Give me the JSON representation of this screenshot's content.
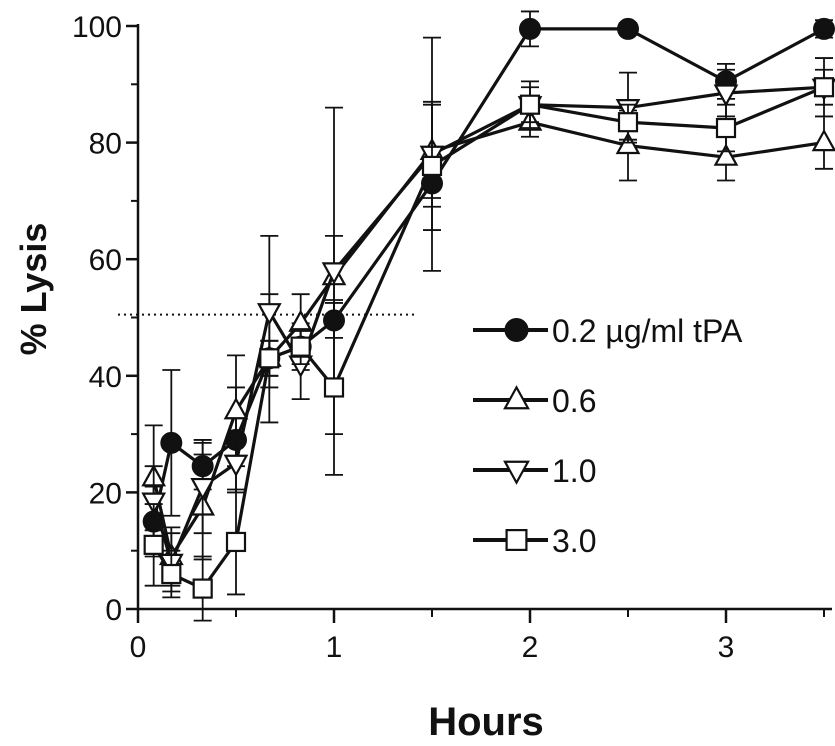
{
  "chart_data": {
    "type": "line",
    "xlabel": "Hours",
    "ylabel": "% Lysis",
    "xlim": [
      0,
      3.55
    ],
    "ylim": [
      0,
      100
    ],
    "x_ticks": [
      0,
      1,
      2,
      3
    ],
    "y_ticks": [
      0,
      20,
      40,
      60,
      80,
      100
    ],
    "grid": false,
    "legend_position": "right-center",
    "reference_line": {
      "y": 50.5,
      "x_range": [
        0,
        1.42
      ],
      "style": "dotted"
    },
    "series": [
      {
        "name": "0.2 µg/ml tPA",
        "marker": "filled-circle",
        "points": [
          {
            "x": 0.08,
            "y": 15,
            "err": 6
          },
          {
            "x": 0.17,
            "y": 28.5,
            "err": 12.5
          },
          {
            "x": 0.33,
            "y": 24.5,
            "err": 4
          },
          {
            "x": 0.5,
            "y": 29,
            "err": 9
          },
          {
            "x": 0.67,
            "y": 43,
            "err": 3
          },
          {
            "x": 0.83,
            "y": 45,
            "err": 4
          },
          {
            "x": 1.0,
            "y": 49.5,
            "err": 3
          },
          {
            "x": 1.5,
            "y": 73,
            "err": 4
          },
          {
            "x": 2.0,
            "y": 99.5,
            "err": 3
          },
          {
            "x": 2.5,
            "y": 99.5,
            "err": 1
          },
          {
            "x": 3.0,
            "y": 90.5,
            "err": 3
          },
          {
            "x": 3.5,
            "y": 99.5,
            "err": 1.5
          }
        ]
      },
      {
        "name": "0.6",
        "marker": "open-triangle-up",
        "points": [
          {
            "x": 0.08,
            "y": 22.5,
            "err": 9
          },
          {
            "x": 0.17,
            "y": 9,
            "err": 5
          },
          {
            "x": 0.33,
            "y": 17.5,
            "err": 9
          },
          {
            "x": 0.5,
            "y": 34,
            "err": 9.5
          },
          {
            "x": 0.67,
            "y": 43,
            "err": 11
          },
          {
            "x": 0.83,
            "y": 49,
            "err": 5
          },
          {
            "x": 1.0,
            "y": 57,
            "err": 7
          },
          {
            "x": 1.5,
            "y": 78.5,
            "err": 8
          },
          {
            "x": 2.0,
            "y": 83.5,
            "err": 2.5
          },
          {
            "x": 2.5,
            "y": 79.5,
            "err": 6
          },
          {
            "x": 3.0,
            "y": 77.5,
            "err": 4
          },
          {
            "x": 3.5,
            "y": 80,
            "err": 4.5
          }
        ]
      },
      {
        "name": "1.0",
        "marker": "open-triangle-down",
        "points": [
          {
            "x": 0.08,
            "y": 18.5,
            "err": 6
          },
          {
            "x": 0.17,
            "y": 8,
            "err": 5
          },
          {
            "x": 0.33,
            "y": 21,
            "err": 8
          },
          {
            "x": 0.5,
            "y": 25,
            "err": 5
          },
          {
            "x": 0.67,
            "y": 51,
            "err": 13
          },
          {
            "x": 0.83,
            "y": 42,
            "err": 6
          },
          {
            "x": 1.0,
            "y": 58,
            "err": 28
          },
          {
            "x": 1.5,
            "y": 78,
            "err": 20
          },
          {
            "x": 2.0,
            "y": 86.5,
            "err": 4
          },
          {
            "x": 2.5,
            "y": 86,
            "err": 6
          },
          {
            "x": 3.0,
            "y": 88.5,
            "err": 4
          },
          {
            "x": 3.5,
            "y": 89.5,
            "err": 5
          }
        ]
      },
      {
        "name": "3.0",
        "marker": "open-square",
        "points": [
          {
            "x": 0.08,
            "y": 11,
            "err": 7
          },
          {
            "x": 0.17,
            "y": 6,
            "err": 4
          },
          {
            "x": 0.33,
            "y": 3.5,
            "err": 5.5
          },
          {
            "x": 0.5,
            "y": 11.5,
            "err": 9
          },
          {
            "x": 0.67,
            "y": 43,
            "err": 3
          },
          {
            "x": 0.83,
            "y": 45,
            "err": 3
          },
          {
            "x": 1.0,
            "y": 38,
            "err": 15
          },
          {
            "x": 1.5,
            "y": 76,
            "err": 11
          },
          {
            "x": 2.0,
            "y": 86.5,
            "err": 3
          },
          {
            "x": 2.5,
            "y": 83.5,
            "err": 3
          },
          {
            "x": 3.0,
            "y": 82.5,
            "err": 4
          },
          {
            "x": 3.5,
            "y": 89.5,
            "err": 3
          }
        ]
      }
    ]
  }
}
